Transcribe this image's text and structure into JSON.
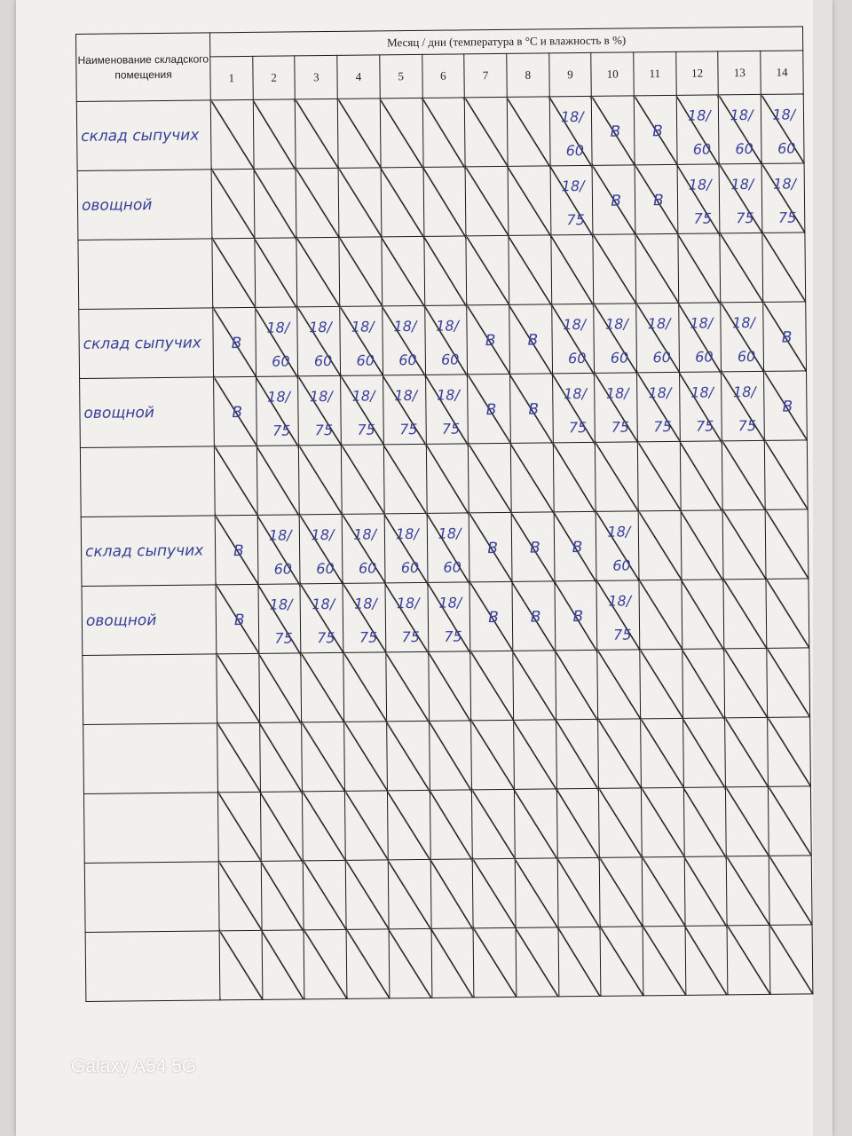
{
  "header": {
    "name_column": "Наименование складского помещения",
    "month_days": "Месяц / дни (температура в °С и влажность в %)",
    "days": [
      "1",
      "2",
      "3",
      "4",
      "5",
      "6",
      "7",
      "8",
      "9",
      "10",
      "11",
      "12",
      "13",
      "14"
    ]
  },
  "rows": [
    {
      "name": "склад сыпучих",
      "cells": [
        "",
        "",
        "",
        "",
        "",
        "",
        "",
        "",
        "18/60",
        "В",
        "В",
        "18/60",
        "18/60",
        "18/60"
      ]
    },
    {
      "name": "овощной",
      "cells": [
        "",
        "",
        "",
        "",
        "",
        "",
        "",
        "",
        "18/75",
        "В",
        "В",
        "18/75",
        "18/75",
        "18/75"
      ]
    },
    {
      "name": "",
      "cells": [
        "",
        "",
        "",
        "",
        "",
        "",
        "",
        "",
        "",
        "",
        "",
        "",
        "",
        ""
      ]
    },
    {
      "name": "склад сыпучих",
      "cells": [
        "В",
        "18/60",
        "18/60",
        "18/60",
        "18/60",
        "18/60",
        "В",
        "В",
        "18/60",
        "18/60",
        "18/60",
        "18/60",
        "18/60",
        "В"
      ]
    },
    {
      "name": "овощной",
      "cells": [
        "В",
        "18/75",
        "18/75",
        "18/75",
        "18/75",
        "18/75",
        "В",
        "В",
        "18/75",
        "18/75",
        "18/75",
        "18/75",
        "18/75",
        "В"
      ]
    },
    {
      "name": "",
      "cells": [
        "",
        "",
        "",
        "",
        "",
        "",
        "",
        "",
        "",
        "",
        "",
        "",
        "",
        ""
      ]
    },
    {
      "name": "склад сыпучих",
      "cells": [
        "В",
        "18/60",
        "18/60",
        "18/60",
        "18/60",
        "18/60",
        "В",
        "В",
        "В",
        "18/60",
        "",
        "",
        "",
        ""
      ]
    },
    {
      "name": "овощной",
      "cells": [
        "В",
        "18/75",
        "18/75",
        "18/75",
        "18/75",
        "18/75",
        "В",
        "В",
        "В",
        "18/75",
        "",
        "",
        "",
        ""
      ]
    },
    {
      "name": "",
      "cells": [
        "",
        "",
        "",
        "",
        "",
        "",
        "",
        "",
        "",
        "",
        "",
        "",
        "",
        ""
      ]
    },
    {
      "name": "",
      "cells": [
        "",
        "",
        "",
        "",
        "",
        "",
        "",
        "",
        "",
        "",
        "",
        "",
        "",
        ""
      ]
    },
    {
      "name": "",
      "cells": [
        "",
        "",
        "",
        "",
        "",
        "",
        "",
        "",
        "",
        "",
        "",
        "",
        "",
        ""
      ]
    },
    {
      "name": "",
      "cells": [
        "",
        "",
        "",
        "",
        "",
        "",
        "",
        "",
        "",
        "",
        "",
        "",
        "",
        ""
      ]
    },
    {
      "name": "",
      "cells": [
        "",
        "",
        "",
        "",
        "",
        "",
        "",
        "",
        "",
        "",
        "",
        "",
        "",
        ""
      ]
    }
  ],
  "watermark": "Galaxy A54 5G"
}
